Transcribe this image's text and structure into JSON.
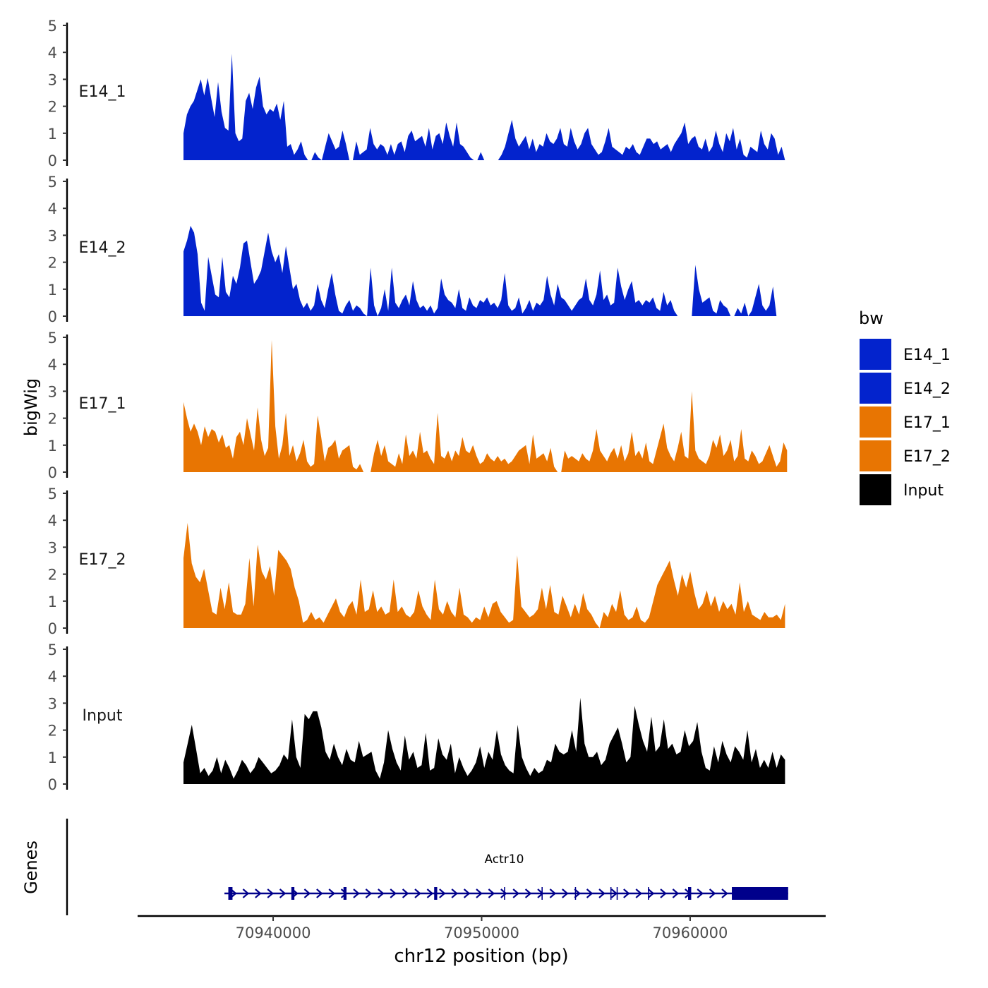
{
  "chart_data": {
    "type": "area",
    "title": "",
    "ylabel": "bigWig",
    "xlabel": "chr12 position (bp)",
    "xlim": [
      70933500,
      70966500
    ],
    "ylim": [
      0,
      5
    ],
    "yticks": [
      "0",
      "1",
      "2",
      "3",
      "4",
      "5"
    ],
    "xticks": [
      {
        "value": 70940000,
        "label": "70940000"
      },
      {
        "value": 70950000,
        "label": "70950000"
      },
      {
        "value": 70960000,
        "label": "70960000"
      }
    ],
    "legend": {
      "title": "bw",
      "position": "right",
      "items": [
        {
          "label": "E14_1",
          "color": "#0323CD"
        },
        {
          "label": "E14_2",
          "color": "#0323CD"
        },
        {
          "label": "E17_1",
          "color": "#E87502"
        },
        {
          "label": "E17_2",
          "color": "#E87502"
        },
        {
          "label": "Input",
          "color": "#000000"
        }
      ]
    },
    "series": [
      {
        "name": "E14_1",
        "color": "#0323CD",
        "x_start": 70935700,
        "x_end": 70964550,
        "values": [
          1.0,
          1.7,
          2.0,
          2.2,
          2.6,
          3.0,
          2.4,
          3.05,
          2.3,
          1.6,
          2.9,
          1.8,
          1.2,
          1.1,
          3.95,
          1.0,
          0.7,
          0.8,
          2.2,
          2.5,
          1.9,
          2.7,
          3.1,
          2.0,
          1.7,
          1.9,
          1.8,
          2.1,
          1.5,
          2.2,
          0.5,
          0.6,
          0.2,
          0.4,
          0.7,
          0.2,
          0,
          0,
          0.3,
          0.1,
          0,
          0.5,
          1.0,
          0.7,
          0.4,
          0.5,
          1.1,
          0.6,
          0,
          0,
          0.7,
          0.2,
          0.3,
          0.4,
          1.2,
          0.6,
          0.4,
          0.6,
          0.5,
          0.2,
          0.6,
          0.2,
          0.6,
          0.7,
          0.3,
          0.9,
          1.1,
          0.7,
          0.8,
          0.9,
          0.5,
          1.2,
          0.4,
          0.9,
          1.0,
          0.6,
          1.4,
          0.9,
          0.5,
          1.4,
          0.6,
          0.5,
          0.3,
          0.1,
          0,
          0,
          0.3,
          0,
          0,
          0,
          0,
          0,
          0.2,
          0.5,
          1.0,
          1.5,
          0.8,
          0.5,
          0.7,
          0.9,
          0.4,
          0.8,
          0.3,
          0.6,
          0.5,
          1.0,
          0.7,
          0.6,
          0.8,
          1.2,
          0.6,
          0.5,
          1.2,
          0.7,
          0.4,
          0.6,
          1.0,
          1.2,
          0.6,
          0.4,
          0.2,
          0.3,
          0.7,
          1.2,
          0.5,
          0.4,
          0.3,
          0.2,
          0.5,
          0.4,
          0.6,
          0.3,
          0.2,
          0.5,
          0.8,
          0.8,
          0.6,
          0.7,
          0.4,
          0.5,
          0.6,
          0.3,
          0.6,
          0.8,
          1.0,
          1.4,
          0.6,
          0.8,
          0.9,
          0.5,
          0.4,
          0.8,
          0.3,
          0.5,
          1.1,
          0.6,
          0.3,
          1.0,
          0.7,
          1.2,
          0.4,
          0.8,
          0.2,
          0.1,
          0.5,
          0.4,
          0.3,
          1.1,
          0.6,
          0.4,
          1.0,
          0.8,
          0.2,
          0.5,
          0
        ]
      },
      {
        "name": "E14_2",
        "color": "#0323CD",
        "x_start": 70935700,
        "x_end": 70964650,
        "values": [
          2.4,
          2.8,
          3.35,
          3.1,
          2.3,
          0.5,
          0.2,
          2.2,
          1.5,
          0.8,
          0.7,
          2.2,
          0.9,
          0.7,
          1.5,
          1.2,
          1.8,
          2.7,
          2.8,
          2.0,
          1.2,
          1.4,
          1.7,
          2.4,
          3.1,
          2.4,
          2.0,
          2.3,
          1.6,
          2.6,
          1.8,
          1.0,
          1.2,
          0.6,
          0.3,
          0.5,
          0.2,
          0.4,
          1.2,
          0.6,
          0.3,
          1.0,
          1.6,
          0.8,
          0.2,
          0.1,
          0.4,
          0.6,
          0.2,
          0.4,
          0.3,
          0.1,
          0,
          1.8,
          0.4,
          0,
          0.3,
          1.0,
          0.2,
          1.8,
          0.5,
          0.3,
          0.6,
          0.8,
          0.4,
          1.3,
          0.6,
          0.3,
          0.4,
          0.2,
          0.4,
          0.1,
          0.3,
          1.4,
          0.8,
          0.6,
          0.5,
          0.3,
          1.0,
          0.3,
          0.2,
          0.7,
          0.4,
          0.3,
          0.6,
          0.5,
          0.7,
          0.4,
          0.5,
          0.3,
          0.6,
          1.6,
          0.4,
          0.2,
          0.3,
          0.7,
          0.1,
          0.3,
          0.6,
          0.2,
          0.5,
          0.4,
          0.6,
          1.5,
          0.8,
          0.4,
          1.2,
          0.7,
          0.6,
          0.4,
          0.2,
          0.4,
          0.6,
          0.7,
          1.4,
          0.6,
          0.4,
          0.8,
          1.7,
          0.6,
          0.8,
          0.4,
          0.5,
          1.8,
          1.1,
          0.6,
          1.0,
          1.3,
          0.5,
          0.6,
          0.4,
          0.6,
          0.5,
          0.7,
          0.3,
          0.2,
          0.9,
          0.4,
          0.6,
          0.2,
          0,
          0,
          0,
          0,
          0,
          1.9,
          1.0,
          0.5,
          0.6,
          0.7,
          0.2,
          0.1,
          0.6,
          0.4,
          0.3,
          0,
          0,
          0.3,
          0.1,
          0.5,
          0,
          0.2,
          0.7,
          1.2,
          0.4,
          0.2,
          0.4,
          1.1,
          0,
          0,
          0,
          0
        ]
      },
      {
        "name": "E17_1",
        "color": "#E87502",
        "x_start": 70935700,
        "x_end": 70964650,
        "values": [
          2.6,
          2.0,
          1.5,
          1.8,
          1.5,
          1.0,
          1.7,
          1.3,
          1.6,
          1.5,
          1.1,
          1.4,
          0.9,
          1.0,
          0.5,
          1.3,
          1.5,
          1.0,
          2.0,
          1.4,
          0.8,
          2.4,
          1.2,
          0.6,
          0.9,
          4.9,
          1.7,
          0.5,
          1.0,
          2.2,
          0.6,
          1.0,
          0.4,
          0.7,
          1.2,
          0.4,
          0.2,
          0.3,
          2.1,
          1.3,
          0.4,
          0.9,
          1.0,
          1.2,
          0.5,
          0.8,
          0.9,
          1.0,
          0.2,
          0.1,
          0.3,
          0,
          0,
          0,
          0.7,
          1.2,
          0.6,
          1.0,
          0.4,
          0.3,
          0.2,
          0.7,
          0.3,
          1.4,
          0.6,
          0.8,
          0.5,
          1.5,
          0.7,
          0.8,
          0.5,
          0.3,
          2.2,
          0.6,
          0.5,
          0.8,
          0.4,
          0.8,
          0.6,
          1.3,
          0.8,
          0.7,
          1.0,
          0.6,
          0.3,
          0.4,
          0.7,
          0.5,
          0.4,
          0.6,
          0.4,
          0.5,
          0.3,
          0.4,
          0.6,
          0.8,
          0.9,
          1.0,
          0.3,
          1.4,
          0.5,
          0.6,
          0.7,
          0.4,
          0.9,
          0.2,
          0,
          0,
          0.8,
          0.5,
          0.6,
          0.5,
          0.4,
          0.7,
          0.5,
          0.4,
          0.8,
          1.6,
          0.8,
          0.6,
          0.4,
          0.7,
          0.9,
          0.5,
          1.0,
          0.4,
          0.7,
          1.5,
          0.6,
          0.8,
          0.5,
          1.1,
          0.4,
          0.3,
          0.8,
          1.3,
          1.8,
          0.9,
          0.6,
          0.4,
          0.9,
          1.5,
          0.6,
          0.5,
          3.0,
          0.8,
          0.5,
          0.4,
          0.3,
          0.6,
          1.2,
          0.9,
          1.4,
          0.6,
          0.8,
          1.2,
          0.4,
          0.6,
          1.6,
          0.5,
          0.4,
          0.8,
          0.6,
          0.3,
          0.4,
          0.7,
          1.0,
          0.6,
          0.2,
          0.4,
          1.1,
          0.8
        ]
      },
      {
        "name": "E17_2",
        "color": "#E87502",
        "x_start": 70935700,
        "x_end": 70964550,
        "values": [
          2.6,
          3.9,
          2.4,
          1.9,
          1.7,
          2.2,
          1.4,
          0.6,
          0.5,
          1.5,
          0.7,
          1.7,
          0.6,
          0.5,
          0.5,
          0.9,
          2.6,
          0.8,
          3.1,
          2.1,
          1.8,
          2.3,
          1.2,
          2.9,
          2.7,
          2.5,
          2.2,
          1.5,
          1.0,
          0.2,
          0.3,
          0.6,
          0.3,
          0.4,
          0.2,
          0.5,
          0.8,
          1.1,
          0.6,
          0.4,
          0.8,
          1.0,
          0.5,
          1.8,
          0.6,
          0.7,
          1.4,
          0.6,
          0.8,
          0.5,
          0.6,
          1.8,
          0.6,
          0.8,
          0.5,
          0.4,
          0.6,
          1.4,
          0.8,
          0.5,
          0.3,
          1.8,
          0.7,
          0.5,
          1.0,
          0.6,
          0.4,
          1.5,
          0.5,
          0.4,
          0.2,
          0.4,
          0.3,
          0.8,
          0.4,
          0.9,
          1.0,
          0.6,
          0.4,
          0.2,
          0.3,
          2.7,
          0.8,
          0.6,
          0.4,
          0.5,
          0.7,
          1.5,
          0.7,
          1.6,
          0.6,
          0.5,
          1.2,
          0.8,
          0.4,
          0.9,
          0.5,
          1.3,
          0.7,
          0.5,
          0.2,
          0,
          0.6,
          0.4,
          0.9,
          0.6,
          1.4,
          0.5,
          0.3,
          0.4,
          0.8,
          0.3,
          0.2,
          0.4,
          1.0,
          1.6,
          1.9,
          2.2,
          2.5,
          1.8,
          1.2,
          2.0,
          1.5,
          2.1,
          1.3,
          0.7,
          0.9,
          1.4,
          0.8,
          1.2,
          0.6,
          1.0,
          0.7,
          0.9,
          0.5,
          1.7,
          0.6,
          1.0,
          0.5,
          0.4,
          0.3,
          0.6,
          0.4,
          0.4,
          0.5,
          0.3,
          0.9
        ]
      },
      {
        "name": "Input",
        "color": "#000000",
        "x_start": 70935700,
        "x_end": 70964550,
        "values": [
          0.8,
          1.5,
          2.2,
          1.3,
          0.4,
          0.6,
          0.3,
          0.5,
          1.0,
          0.4,
          0.9,
          0.6,
          0.2,
          0.5,
          0.9,
          0.7,
          0.4,
          0.6,
          1.0,
          0.8,
          0.6,
          0.4,
          0.5,
          0.7,
          1.1,
          0.9,
          2.4,
          1.0,
          0.6,
          2.6,
          2.4,
          2.7,
          2.7,
          2.1,
          1.2,
          0.9,
          1.5,
          1.0,
          0.7,
          1.3,
          0.9,
          0.8,
          1.6,
          1.0,
          1.1,
          1.2,
          0.5,
          0.2,
          0.8,
          2.0,
          1.3,
          0.8,
          0.5,
          1.8,
          0.9,
          1.2,
          0.6,
          0.7,
          1.9,
          0.5,
          0.6,
          1.7,
          1.1,
          0.9,
          1.5,
          0.4,
          1.0,
          0.6,
          0.3,
          0.5,
          0.8,
          1.4,
          0.6,
          1.2,
          0.9,
          2.0,
          1.1,
          0.7,
          0.5,
          0.4,
          2.2,
          1.0,
          0.6,
          0.3,
          0.6,
          0.4,
          0.5,
          0.9,
          0.8,
          1.5,
          1.2,
          1.1,
          1.2,
          2.0,
          1.2,
          3.2,
          1.5,
          1.0,
          1.0,
          1.2,
          0.7,
          0.9,
          1.5,
          1.8,
          2.1,
          1.5,
          0.8,
          1.0,
          2.9,
          2.2,
          1.6,
          1.2,
          2.5,
          1.2,
          1.4,
          2.4,
          1.3,
          1.5,
          1.1,
          1.2,
          2.0,
          1.4,
          1.6,
          2.3,
          1.2,
          0.6,
          0.5,
          1.4,
          0.8,
          1.6,
          1.1,
          0.8,
          1.4,
          1.2,
          0.9,
          2.0,
          0.8,
          1.3,
          0.6,
          0.9,
          0.6,
          1.2,
          0.6,
          1.1,
          0.9
        ]
      }
    ],
    "genes_track": {
      "label": "Genes",
      "gene_name": "Actr10",
      "strand": "+",
      "color": "#00008B",
      "start": 70937800,
      "end": 70964700,
      "exons": [
        {
          "start": 70937850,
          "end": 70938050
        },
        {
          "start": 70940900,
          "end": 70941000
        },
        {
          "start": 70943400,
          "end": 70943500
        },
        {
          "start": 70947750,
          "end": 70947850
        },
        {
          "start": 70959900,
          "end": 70960050
        },
        {
          "start": 70962000,
          "end": 70964700
        }
      ]
    }
  }
}
